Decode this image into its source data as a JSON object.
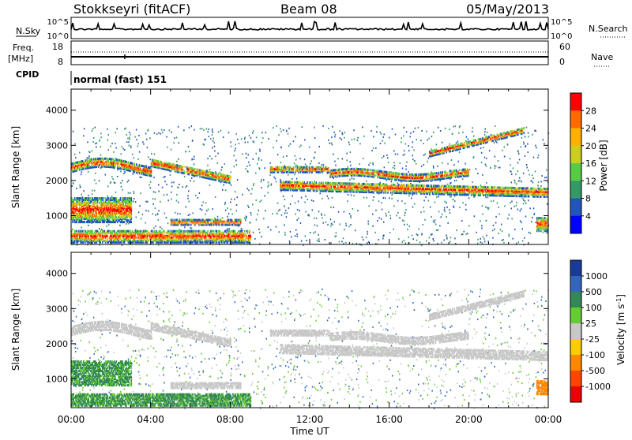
{
  "header": {
    "station": "Stokkseyri (fitACF)",
    "beam": "Beam 08",
    "date": "05/May/2013"
  },
  "noise_panel": {
    "left_label": "N.Sky",
    "right_label": "N.Search",
    "tick_top": "10^5",
    "tick_bottom": "10^0"
  },
  "freq_panel": {
    "left_label_line1": "Freq.",
    "left_label_line2": "[MHz]",
    "left_tick_top": "18",
    "left_tick_bottom": "8",
    "right_label": "Nave",
    "right_tick_top": "60",
    "right_tick_bottom": "0"
  },
  "cpid_panel": {
    "label": "CPID",
    "value": "normal (fast) 151"
  },
  "x_axis": {
    "label": "Time UT",
    "ticks": [
      "00:00",
      "04:00",
      "08:00",
      "12:00",
      "16:00",
      "20:00",
      "00:00"
    ]
  },
  "chart_data": [
    {
      "type": "heatmap",
      "quantity": "Power",
      "ylabel": "Slant Range [km]",
      "yticks": [
        1000,
        2000,
        3000,
        4000
      ],
      "ylim": [
        180,
        4600
      ],
      "xlim_hours": [
        0,
        24
      ],
      "colorbar_label": "Power [dB]",
      "colorbar_ticks": [
        "28",
        "24",
        "20",
        "16",
        "12",
        "8",
        "4"
      ],
      "colorbar_colors": [
        "#ff0000",
        "#ff6a00",
        "#ffb000",
        "#cccc22",
        "#55cc44",
        "#339966",
        "#2255bb",
        "#0000ff"
      ],
      "colors": {
        "low": "#2255bb",
        "mid": "#55cc44",
        "high": "#ff6a00",
        "peak": "#ff0000"
      }
    },
    {
      "type": "heatmap",
      "quantity": "Velocity",
      "ylabel": "Slant Range [km]",
      "yticks": [
        1000,
        2000,
        3000,
        4000
      ],
      "ylim": [
        180,
        4600
      ],
      "xlim_hours": [
        0,
        24
      ],
      "colorbar_label": "Velocity [m s^-1]",
      "colorbar_ticks": [
        "1000",
        "500",
        "100",
        "25",
        "-25",
        "-100",
        "-500",
        "-1000"
      ],
      "colorbar_colors": [
        "#1a3a99",
        "#3366bb",
        "#338855",
        "#66cc33",
        "#c8c8c8",
        "#ffcc00",
        "#ff8800",
        "#ff4400",
        "#ee0000"
      ],
      "colors": {
        "ground": "#c8c8c8",
        "toward": "#338855",
        "away": "#ff8800"
      }
    }
  ]
}
